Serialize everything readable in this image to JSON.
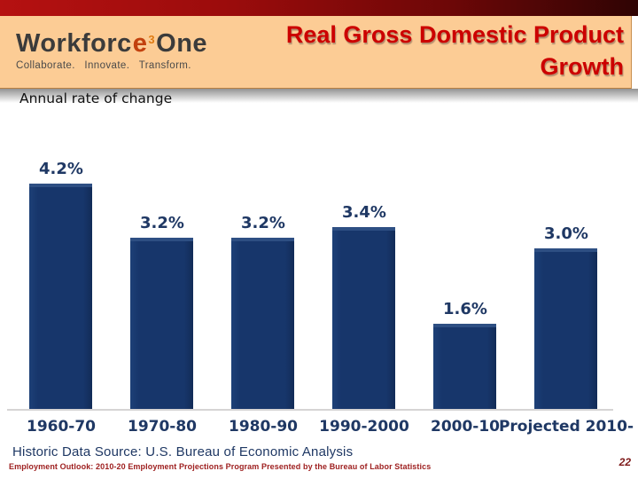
{
  "header": {
    "logo": {
      "word1": "Workforc",
      "e_char": "e",
      "sup": "3",
      "word2": "One",
      "tagline": "Collaborate.  Innovate.  Transform."
    },
    "title_line1": "Real Gross Domestic Product",
    "title_line2": "Growth"
  },
  "subtitle": "Annual rate of change",
  "footer": {
    "source": "Historic Data Source: U.S. Bureau of Economic Analysis",
    "program": "Employment Outlook: 2010-20 Employment Projections Program Presented by the Bureau of Labor Statistics"
  },
  "page_number": "22",
  "colors": {
    "bar": "#17366B",
    "bar_bevel": "#2E4F83",
    "label": "#1F3864",
    "title_red": "#CC0000",
    "header_bg": "#FCCC95",
    "top_bar_left": "#B51111",
    "top_bar_right": "#2F0404",
    "footer_red": "#9E2020",
    "axis": "#D6D4D4"
  },
  "chart_data": {
    "type": "bar",
    "title": "Real Gross Domestic Product Growth",
    "subtitle": "Annual rate of change",
    "categories": [
      "1960-70",
      "1970-80",
      "1980-90",
      "1990-2000",
      "2000-10",
      "Projected 2010-"
    ],
    "values": [
      4.2,
      3.2,
      3.2,
      3.4,
      1.6,
      3.0
    ],
    "labels": [
      "4.2%",
      "3.2%",
      "3.2%",
      "3.4%",
      "1.6%",
      "3.0%"
    ],
    "unit": "percent",
    "ylim": [
      0,
      4.5
    ],
    "grid": false,
    "legend": false,
    "data_labels": "above-bars"
  }
}
